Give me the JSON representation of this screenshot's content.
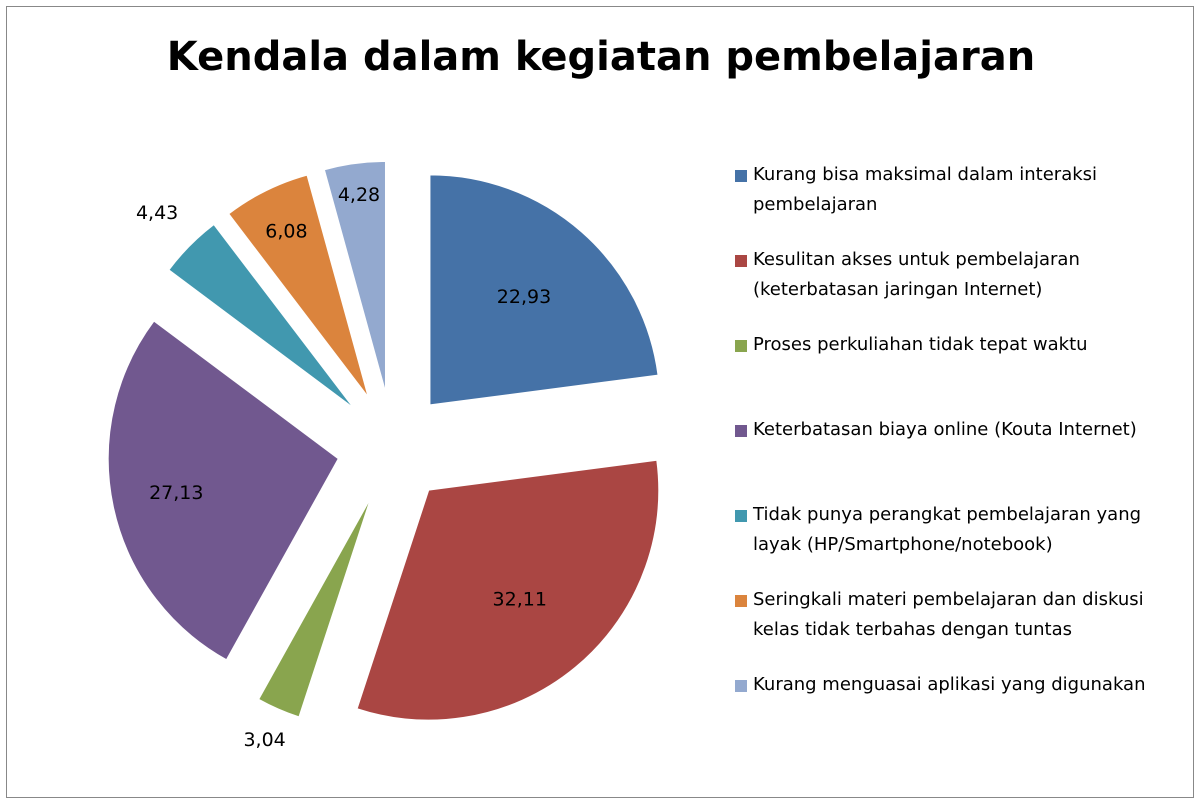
{
  "chart_data": {
    "type": "pie",
    "title": "Kendala dalam kegiatan pembelajaran",
    "categories": [
      "Kurang bisa maksimal dalam interaksi pembelajaran",
      "Kesulitan akses untuk pembelajaran (keterbatasan jaringan Internet)",
      "Proses perkuliahan tidak tepat waktu",
      "Keterbatasan biaya online (Kouta Internet)",
      "Tidak punya perangkat pembelajaran yang layak (HP/Smartphone/notebook)",
      "Seringkali materi pembelajaran dan diskusi kelas tidak terbahas dengan tuntas",
      "Kurang menguasai aplikasi yang digunakan"
    ],
    "values": [
      22.93,
      32.11,
      3.04,
      27.13,
      4.43,
      6.08,
      4.28
    ],
    "value_labels": [
      "22,93",
      "32,11",
      "3,04",
      "27,13",
      "4,43",
      "6,08",
      "4,28"
    ],
    "colors": [
      "#4572a7",
      "#aa4643",
      "#89a54e",
      "#71588f",
      "#4198af",
      "#db843d",
      "#93a9cf"
    ],
    "legend": "right"
  }
}
